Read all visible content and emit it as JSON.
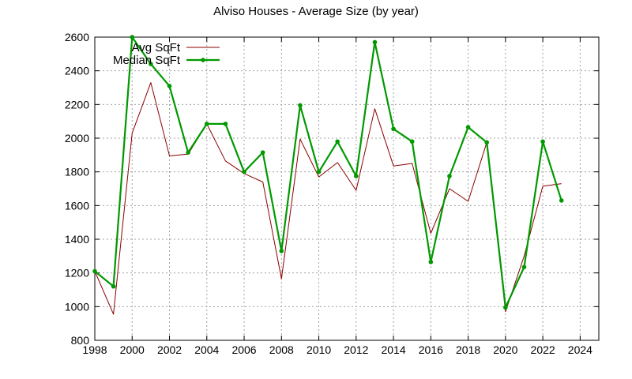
{
  "chart_data": {
    "type": "line",
    "title": "Alviso Houses - Average Size (by year)",
    "xlabel": "",
    "ylabel": "",
    "xlim": [
      1998,
      2025
    ],
    "ylim": [
      800,
      2600
    ],
    "x_ticks": [
      1998,
      2000,
      2002,
      2004,
      2006,
      2008,
      2010,
      2012,
      2014,
      2016,
      2018,
      2020,
      2022,
      2024
    ],
    "y_ticks": [
      800,
      1000,
      1200,
      1400,
      1600,
      1800,
      2000,
      2200,
      2400,
      2600
    ],
    "grid": true,
    "legend_position": "top-left",
    "x": [
      1998,
      1999,
      2000,
      2001,
      2002,
      2003,
      2004,
      2005,
      2006,
      2007,
      2008,
      2009,
      2010,
      2011,
      2012,
      2013,
      2014,
      2015,
      2016,
      2017,
      2018,
      2019,
      2020,
      2021,
      2022,
      2023
    ],
    "series": [
      {
        "name": "Avg SqFt",
        "color": "#8b0000",
        "marker": false,
        "values": [
          1210,
          955,
          2030,
          2330,
          1895,
          1905,
          2085,
          1865,
          1790,
          1740,
          1165,
          1995,
          1770,
          1855,
          1690,
          2175,
          1835,
          1850,
          1435,
          1700,
          1625,
          1975,
          970,
          1300,
          1715,
          1730
        ]
      },
      {
        "name": "Median SqFt",
        "color": "#009900",
        "marker": true,
        "values": [
          1210,
          1120,
          2600,
          2440,
          2310,
          1915,
          2085,
          2085,
          1800,
          1915,
          1330,
          2195,
          1800,
          1980,
          1775,
          2570,
          2055,
          1980,
          1265,
          1775,
          2065,
          1975,
          995,
          1235,
          1980,
          1630
        ]
      }
    ]
  }
}
